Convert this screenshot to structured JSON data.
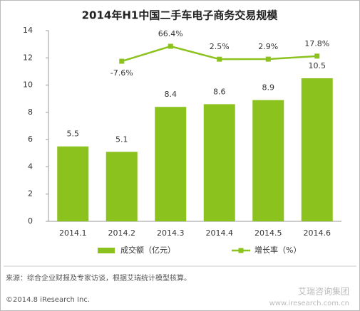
{
  "chart_data": {
    "type": "combo",
    "title": "2014年H1中国二手车电子商务交易规模",
    "categories": [
      "2014.1",
      "2014.2",
      "2014.3",
      "2014.4",
      "2014.5",
      "2014.6"
    ],
    "series": [
      {
        "name": "成交额（亿元）",
        "type": "bar",
        "color": "#8cc21e",
        "values": [
          5.5,
          5.1,
          8.4,
          8.6,
          8.9,
          10.5
        ]
      },
      {
        "name": "增长率（%）",
        "type": "line",
        "axis": "y2",
        "color": "#8cc21e",
        "values": [
          null,
          -7.6,
          66.4,
          2.5,
          2.9,
          17.8
        ],
        "value_labels": [
          null,
          "-7.6%",
          "66.4%",
          "2.5%",
          "2.9%",
          "17.8%"
        ]
      }
    ],
    "ylim": [
      0,
      14
    ],
    "yticks": [
      0,
      2,
      4,
      6,
      8,
      10,
      12,
      14
    ],
    "y2lim": [
      -800,
      144
    ],
    "source": "来源：综合企业财报及专家访谈，根据艾瑞统计模型核算。",
    "copyright": "©2014.8 iResearch Inc.",
    "watermark": [
      "艾瑞咨询集团",
      "www.iresearch.com.cn"
    ]
  }
}
